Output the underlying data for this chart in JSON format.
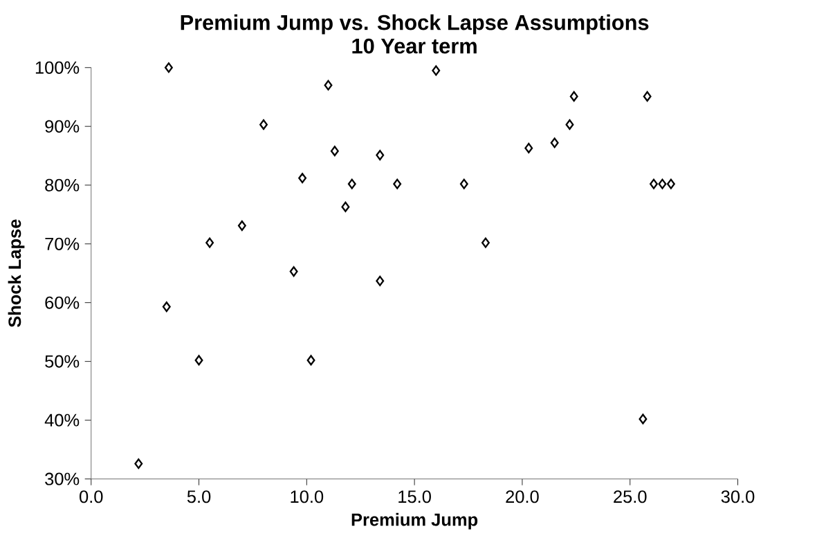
{
  "chart_data": {
    "type": "scatter",
    "title": "Premium Jump vs. Shock Lapse Assumptions\n10 Year term",
    "xlabel": "Premium Jump",
    "ylabel": "Shock Lapse",
    "marker": "diamond",
    "grid": false,
    "series": [
      {
        "color": "#000000",
        "x": [
          2.2,
          3.5,
          3.6,
          5.0,
          5.5,
          7.0,
          8.0,
          9.4,
          9.8,
          10.2,
          11.0,
          11.3,
          11.8,
          12.1,
          13.4,
          13.4,
          14.2,
          16.0,
          17.3,
          18.3,
          20.3,
          21.5,
          22.2,
          22.4,
          25.6,
          25.8,
          26.1,
          26.5,
          26.9
        ],
        "values": [
          32.6,
          59.3,
          100,
          50.2,
          70.2,
          73.1,
          90.3,
          65.3,
          81.2,
          50.2,
          97,
          85.8,
          76.3,
          80.2,
          85.1,
          63.7,
          80.2,
          99.5,
          80.2,
          70.2,
          86.3,
          87.2,
          90.3,
          95.1,
          40.2,
          95.1,
          80.2,
          80.2,
          80.2
        ]
      }
    ],
    "xlim": [
      0,
      30
    ],
    "xticks": [
      {
        "value": 0,
        "label": "0.0"
      },
      {
        "value": 5,
        "label": "5.0"
      },
      {
        "value": 10,
        "label": "10.0"
      },
      {
        "value": 15,
        "label": "15.0"
      },
      {
        "value": 20,
        "label": "20.0"
      },
      {
        "value": 25,
        "label": "25.0"
      },
      {
        "value": 30,
        "label": "30.0"
      }
    ],
    "ylim": [
      30,
      100
    ],
    "yticks": [
      {
        "value": 30,
        "label": "30%"
      },
      {
        "value": 40,
        "label": "40%"
      },
      {
        "value": 50,
        "label": "50%"
      },
      {
        "value": 60,
        "label": "60%"
      },
      {
        "value": 70,
        "label": "70%"
      },
      {
        "value": 80,
        "label": "80%"
      },
      {
        "value": 90,
        "label": "90%"
      },
      {
        "value": 100,
        "label": "100%"
      }
    ]
  }
}
